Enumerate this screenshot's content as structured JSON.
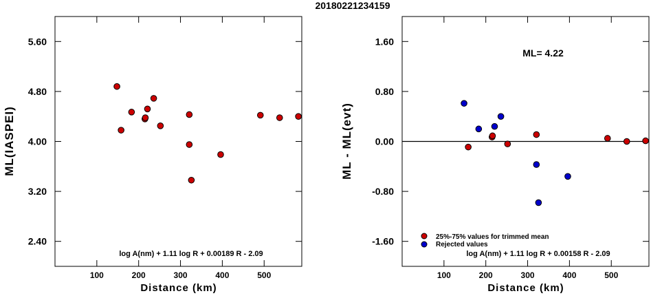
{
  "page_title": "20180221234159",
  "chart_data": [
    {
      "type": "scatter",
      "xlabel": "Distance (km)",
      "ylabel": "ML(IASPEI)",
      "xlim": [
        0,
        590
      ],
      "ylim": [
        2.0,
        6.0
      ],
      "xticks": [
        100,
        200,
        300,
        400,
        500
      ],
      "yticks": [
        2.4,
        3.2,
        4.0,
        4.8,
        5.6
      ],
      "ytick_labels": [
        "2.40",
        "3.20",
        "4.00",
        "4.80",
        "5.60"
      ],
      "formula": "log A(nm) + 1.11 log R + 0.00189 R - 2.09",
      "point_color": "#cc0000",
      "points": [
        {
          "x": 148,
          "y": 4.88
        },
        {
          "x": 158,
          "y": 4.18
        },
        {
          "x": 183,
          "y": 4.47
        },
        {
          "x": 215,
          "y": 4.36
        },
        {
          "x": 216,
          "y": 4.38
        },
        {
          "x": 221,
          "y": 4.52
        },
        {
          "x": 236,
          "y": 4.69
        },
        {
          "x": 252,
          "y": 4.25
        },
        {
          "x": 321,
          "y": 4.43
        },
        {
          "x": 321,
          "y": 3.95
        },
        {
          "x": 326,
          "y": 3.38
        },
        {
          "x": 396,
          "y": 3.79
        },
        {
          "x": 491,
          "y": 4.42
        },
        {
          "x": 537,
          "y": 4.38
        },
        {
          "x": 582,
          "y": 4.4
        }
      ]
    },
    {
      "type": "scatter",
      "xlabel": "Distance (km)",
      "ylabel": "ML - ML(evt)",
      "xlim": [
        0,
        590
      ],
      "ylim": [
        -2.0,
        2.0
      ],
      "xticks": [
        100,
        200,
        300,
        400,
        500
      ],
      "yticks": [
        -1.6,
        -0.8,
        0.0,
        0.8,
        1.6
      ],
      "ytick_labels": [
        "-1.60",
        "-0.80",
        "0.00",
        "0.80",
        "1.60"
      ],
      "zero_line": true,
      "annotation": "ML= 4.22",
      "legend": [
        {
          "label": "25%-75% values for trimmed mean",
          "color": "#cc0000"
        },
        {
          "label": "Rejected values",
          "color": "#0000cc"
        }
      ],
      "formula": "log A(nm) + 1.11 log R + 0.00158 R - 2.09",
      "series": [
        {
          "color": "#cc0000",
          "points": [
            {
              "x": 158,
              "y": -0.09
            },
            {
              "x": 215,
              "y": 0.07
            },
            {
              "x": 216,
              "y": 0.09
            },
            {
              "x": 252,
              "y": -0.04
            },
            {
              "x": 321,
              "y": 0.11
            },
            {
              "x": 491,
              "y": 0.05
            },
            {
              "x": 537,
              "y": 0.0
            },
            {
              "x": 582,
              "y": 0.01
            }
          ]
        },
        {
          "color": "#0000cc",
          "points": [
            {
              "x": 148,
              "y": 0.61
            },
            {
              "x": 183,
              "y": 0.2
            },
            {
              "x": 221,
              "y": 0.24
            },
            {
              "x": 236,
              "y": 0.4
            },
            {
              "x": 321,
              "y": -0.37
            },
            {
              "x": 326,
              "y": -0.98
            },
            {
              "x": 396,
              "y": -0.56
            }
          ]
        }
      ]
    }
  ]
}
